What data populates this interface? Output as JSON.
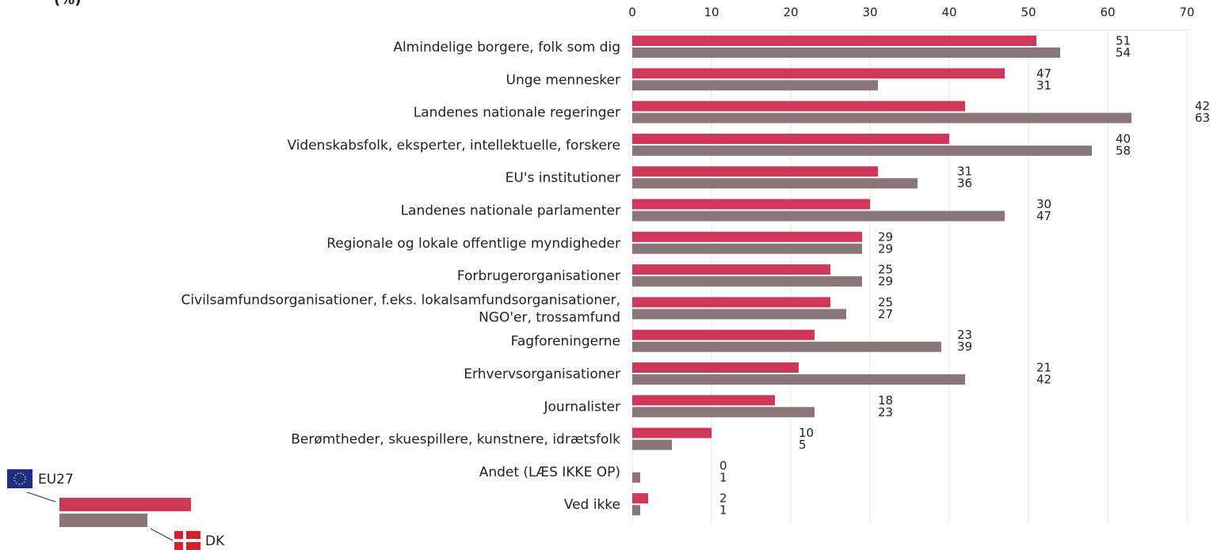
{
  "chart_data": {
    "type": "bar",
    "orientation": "horizontal",
    "title": "(%)",
    "categories": [
      "Almindelige borgere, folk som dig",
      "Unge mennesker",
      "Landenes nationale regeringer",
      "Videnskabsfolk, eksperter, intellektuelle, forskere",
      "EU's institutioner",
      "Landenes nationale parlamenter",
      "Regionale og lokale offentlige myndigheder",
      "Forbrugerorganisationer",
      "Civilsamfundsorganisationer, f.eks. lokalsamfundsorganisationer,\nNGO'er, trossamfund",
      "Fagforeningerne",
      "Erhvervsorganisationer",
      "Journalister",
      "Berømtheder, skuespillere, kunstnere, idrætsfolk",
      "Andet (LÆS IKKE OP)",
      "Ved ikke"
    ],
    "series": [
      {
        "name": "EU27",
        "color": "#cf3759",
        "values": [
          51,
          47,
          42,
          40,
          31,
          30,
          29,
          25,
          25,
          23,
          21,
          18,
          10,
          0,
          2
        ]
      },
      {
        "name": "DK",
        "color": "#8a7679",
        "values": [
          54,
          31,
          63,
          58,
          36,
          47,
          29,
          29,
          27,
          39,
          42,
          23,
          5,
          1,
          1
        ]
      }
    ],
    "xlim": [
      0,
      70
    ],
    "xticks": [
      0,
      10,
      20,
      30,
      40,
      50,
      60,
      70
    ],
    "grid": true
  }
}
